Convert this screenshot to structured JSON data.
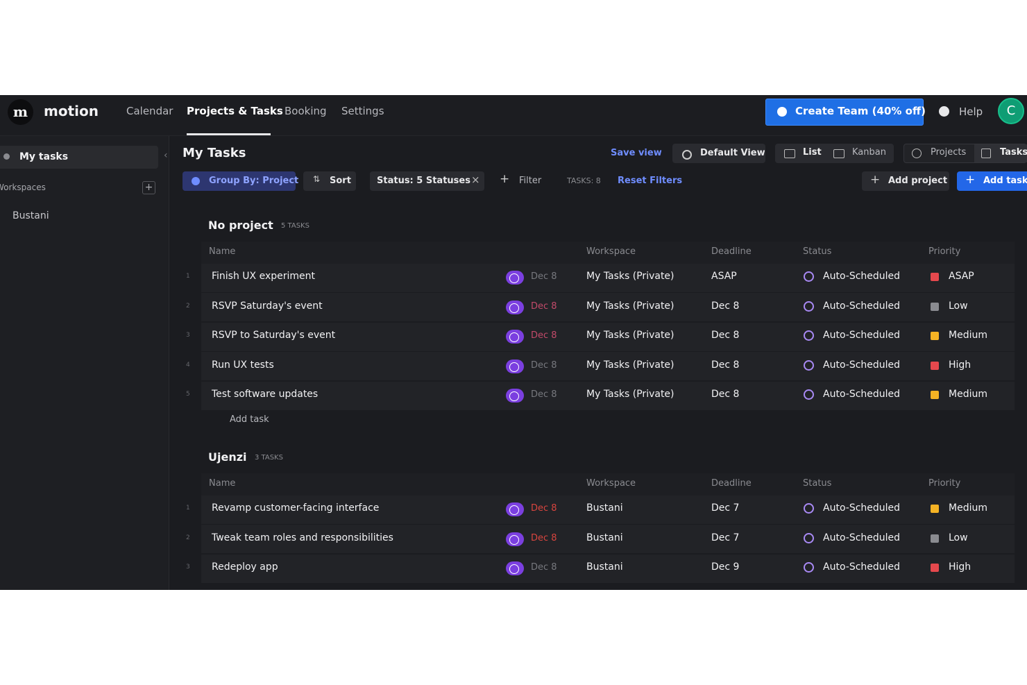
{
  "nav": {
    "brand": "motion",
    "items": [
      "Calendar",
      "Projects & Tasks",
      "Booking",
      "Settings"
    ],
    "active": 1,
    "create_team": "Create Team (40% off)",
    "help": "Help",
    "avatar": "C"
  },
  "sidebar": {
    "my_tasks": "My tasks",
    "workspaces": "Workspaces",
    "workspace_items": [
      "Bustani"
    ]
  },
  "header": {
    "title": "My Tasks",
    "save_view": "Save view",
    "default_view": "Default View",
    "views": [
      "List",
      "Kanban"
    ],
    "kinds": [
      "Projects",
      "Tasks"
    ]
  },
  "toolbar": {
    "group_by": "Group By: Project",
    "sort": "Sort",
    "status": "Status:  5 Statuses",
    "filter": "Filter",
    "task_count": "TASKS: 8",
    "reset": "Reset Filters",
    "add_project": "Add project",
    "add_task": "Add task"
  },
  "groups": [
    {
      "name": "No project",
      "count": "5 TASKS",
      "columns": [
        "Name",
        "Workspace",
        "Deadline",
        "Status",
        "Priority"
      ],
      "rows": [
        {
          "index": "1",
          "name": "Finish UX experiment",
          "date": "Dec 8",
          "date_color": "#77787e",
          "workspace": "My Tasks (Private)",
          "deadline": "ASAP",
          "status": "Auto-Scheduled",
          "priority": "ASAP",
          "priority_color": "#e5484d"
        },
        {
          "index": "2",
          "name": "RSVP Saturday's event",
          "date": "Dec 8",
          "date_color": "#c34a6a",
          "workspace": "My Tasks (Private)",
          "deadline": "Dec 8",
          "status": "Auto-Scheduled",
          "priority": "Low",
          "priority_color": "#8a8b90"
        },
        {
          "index": "3",
          "name": "RSVP to Saturday's event",
          "date": "Dec 8",
          "date_color": "#c34a6a",
          "workspace": "My Tasks (Private)",
          "deadline": "Dec 8",
          "status": "Auto-Scheduled",
          "priority": "Medium",
          "priority_color": "#f5b324"
        },
        {
          "index": "4",
          "name": "Run UX tests",
          "date": "Dec 8",
          "date_color": "#77787e",
          "workspace": "My Tasks (Private)",
          "deadline": "Dec 8",
          "status": "Auto-Scheduled",
          "priority": "High",
          "priority_color": "#e5484d"
        },
        {
          "index": "5",
          "name": "Test software updates",
          "date": "Dec 8",
          "date_color": "#77787e",
          "workspace": "My Tasks (Private)",
          "deadline": "Dec 8",
          "status": "Auto-Scheduled",
          "priority": "Medium",
          "priority_color": "#f5b324"
        }
      ],
      "add_task": "Add task"
    },
    {
      "name": "Ujenzi",
      "count": "3 TASKS",
      "columns": [
        "Name",
        "Workspace",
        "Deadline",
        "Status",
        "Priority"
      ],
      "rows": [
        {
          "index": "1",
          "name": "Revamp customer-facing interface",
          "date": "Dec 8",
          "date_color": "#d9453f",
          "workspace": "Bustani",
          "deadline": "Dec 7",
          "status": "Auto-Scheduled",
          "priority": "Medium",
          "priority_color": "#f5b324"
        },
        {
          "index": "2",
          "name": "Tweak team roles and responsibilities",
          "date": "Dec 8",
          "date_color": "#d9453f",
          "workspace": "Bustani",
          "deadline": "Dec 7",
          "status": "Auto-Scheduled",
          "priority": "Low",
          "priority_color": "#8a8b90"
        },
        {
          "index": "3",
          "name": "Redeploy app",
          "date": "Dec 8",
          "date_color": "#77787e",
          "workspace": "Bustani",
          "deadline": "Dec 9",
          "status": "Auto-Scheduled",
          "priority": "High",
          "priority_color": "#e5484d"
        }
      ]
    }
  ]
}
